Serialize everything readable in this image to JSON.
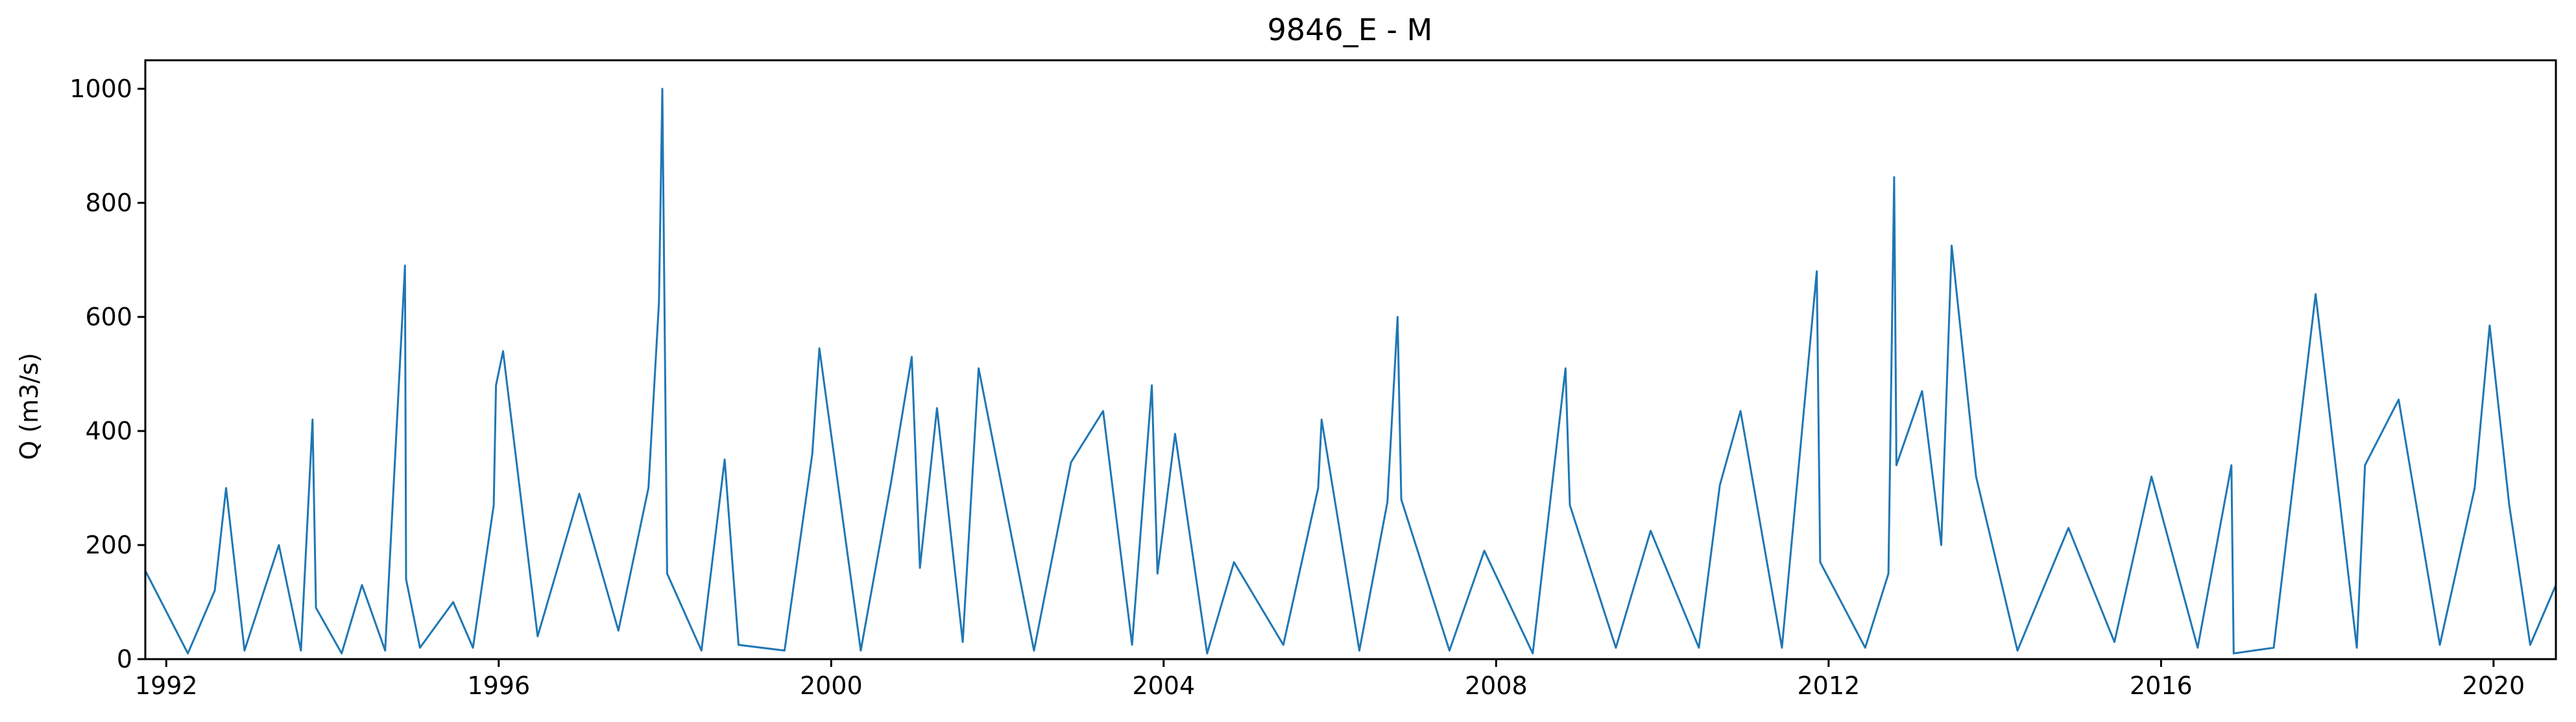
{
  "chart_data": {
    "type": "line",
    "title": "9846_E - M",
    "xlabel": "",
    "ylabel": "Q (m3/s)",
    "xlim": [
      "1991-10-01",
      "2020-10-01"
    ],
    "ylim": [
      0,
      1050
    ],
    "x_ticks": [
      {
        "label": "1992",
        "date": "1992-01-01"
      },
      {
        "label": "1996",
        "date": "1996-01-01"
      },
      {
        "label": "2000",
        "date": "2000-01-01"
      },
      {
        "label": "2004",
        "date": "2004-01-01"
      },
      {
        "label": "2008",
        "date": "2008-01-01"
      },
      {
        "label": "2012",
        "date": "2012-01-01"
      },
      {
        "label": "2016",
        "date": "2016-01-01"
      },
      {
        "label": "2020",
        "date": "2020-01-01"
      }
    ],
    "y_ticks": [
      0,
      200,
      400,
      600,
      800,
      1000
    ],
    "grid": false,
    "legend": "none",
    "series": [
      {
        "color": "#1f77b4",
        "x": [
          "1991-10-01",
          "1992-04-05",
          "1992-08-01",
          "1992-09-20",
          "1992-12-10",
          "1993-05-10",
          "1993-08-15",
          "1993-10-05",
          "1993-10-20",
          "1994-02-10",
          "1994-05-10",
          "1994-08-20",
          "1994-11-15",
          "1994-11-20",
          "1995-01-20",
          "1995-06-15",
          "1995-09-10",
          "1995-12-10",
          "1995-12-20",
          "1996-01-20",
          "1996-06-20",
          "1996-12-20",
          "1997-06-10",
          "1997-10-20",
          "1997-12-05",
          "1997-12-20",
          "1998-01-10",
          "1998-06-10",
          "1998-09-20",
          "1998-11-20",
          "1999-06-10",
          "1999-10-10",
          "1999-11-10",
          "2000-05-10",
          "2000-09-20",
          "2000-12-20",
          "2001-01-25",
          "2001-04-10",
          "2001-08-01",
          "2001-10-10",
          "2002-06-10",
          "2002-11-20",
          "2003-04-10",
          "2003-08-15",
          "2003-11-10",
          "2003-12-05",
          "2004-02-20",
          "2004-07-10",
          "2004-11-05",
          "2005-06-10",
          "2005-11-10",
          "2005-11-25",
          "2006-05-10",
          "2006-09-10",
          "2006-10-25",
          "2006-11-10",
          "2007-06-10",
          "2007-11-10",
          "2008-06-10",
          "2008-11-01",
          "2008-11-20",
          "2009-06-10",
          "2009-11-10",
          "2010-06-10",
          "2010-09-10",
          "2010-12-10",
          "2011-06-10",
          "2011-11-10",
          "2011-11-25",
          "2012-06-10",
          "2012-09-20",
          "2012-10-15",
          "2012-10-25",
          "2013-02-15",
          "2013-05-10",
          "2013-06-25",
          "2013-10-10",
          "2014-04-10",
          "2014-11-20",
          "2015-06-10",
          "2015-11-20",
          "2016-06-10",
          "2016-11-05",
          "2016-11-15",
          "2017-05-10",
          "2017-11-10",
          "2018-03-10",
          "2018-05-10",
          "2018-06-15",
          "2018-11-10",
          "2019-05-10",
          "2019-10-10",
          "2019-12-15",
          "2020-03-10",
          "2020-06-10",
          "2020-10-01"
        ],
        "y": [
          155,
          10,
          120,
          300,
          15,
          200,
          15,
          420,
          90,
          10,
          130,
          15,
          690,
          140,
          20,
          100,
          20,
          270,
          480,
          540,
          40,
          290,
          50,
          300,
          625,
          1000,
          150,
          15,
          350,
          25,
          15,
          360,
          545,
          15,
          310,
          530,
          160,
          440,
          30,
          510,
          15,
          345,
          435,
          25,
          480,
          150,
          395,
          10,
          170,
          25,
          300,
          420,
          15,
          275,
          600,
          280,
          15,
          190,
          10,
          510,
          270,
          20,
          225,
          20,
          305,
          435,
          20,
          680,
          170,
          20,
          150,
          845,
          340,
          470,
          200,
          725,
          320,
          15,
          230,
          30,
          320,
          20,
          340,
          10,
          20,
          640,
          230,
          20,
          340,
          455,
          25,
          300,
          585,
          270,
          25,
          130
        ]
      }
    ]
  }
}
